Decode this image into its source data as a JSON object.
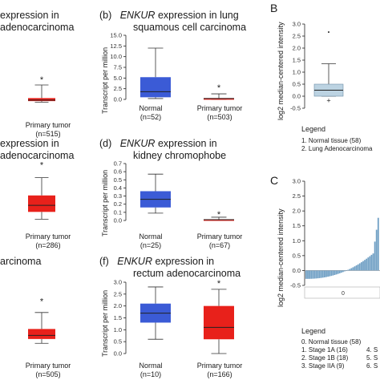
{
  "chart_data": [
    {
      "id": "a",
      "type": "box",
      "title_lines": [
        "expression in",
        "adenocarcinoma"
      ],
      "categories": [
        {
          "label": "Primary tumor",
          "n": "(n=515)"
        }
      ],
      "ylim": [
        0,
        14
      ],
      "boxes": [
        {
          "color": "#e8211b",
          "whislo": 0.1,
          "q1": 0.3,
          "med": 0.5,
          "q3": 0.9,
          "whishi": 3.5,
          "outlier": 4.8
        }
      ]
    },
    {
      "id": "b",
      "type": "box",
      "letter": "(b)",
      "gene": "ENKUR",
      "title_lines": [
        " expression in lung",
        "squamous cell carcinoma"
      ],
      "ylabel": "Transcript per million",
      "yticks": [
        "0.0",
        "2.5",
        "5.0",
        "7.5",
        "10.0",
        "12.5",
        "15.0"
      ],
      "ylim": [
        0,
        15
      ],
      "categories": [
        {
          "label": "Normal",
          "n": "(n=52)"
        },
        {
          "label": "Primary tumor",
          "n": "(n=503)"
        }
      ],
      "boxes": [
        {
          "color": "#3b5bd6",
          "whislo": 0.2,
          "q1": 0.5,
          "med": 1.8,
          "q3": 5.2,
          "whishi": 12.0
        },
        {
          "color": "#e8211b",
          "whislo": 0.0,
          "q1": 0.1,
          "med": 0.2,
          "q3": 0.3,
          "whishi": 1.3,
          "outlier": 3.0
        }
      ]
    },
    {
      "id": "c",
      "type": "box",
      "title_lines": [
        "expression in",
        "adenocarcinoma"
      ],
      "categories": [
        {
          "label": "Primary tumor",
          "n": "(n=286)"
        }
      ],
      "ylim": [
        0,
        14
      ],
      "boxes": [
        {
          "color": "#e8211b",
          "whislo": 0.2,
          "q1": 1.3,
          "med": 2.3,
          "q3": 3.8,
          "whishi": 6.5,
          "outlier": 8.6
        }
      ]
    },
    {
      "id": "d",
      "type": "box",
      "letter": "(d)",
      "gene": "ENKUR",
      "title_lines": [
        " expression in",
        "kidney chromophobe"
      ],
      "ylabel": "Transcript per million",
      "yticks": [
        "0.0",
        "0.1",
        "0.2",
        "0.3",
        "0.4",
        "0.5",
        "0.6",
        "0.7"
      ],
      "ylim": [
        0,
        0.7
      ],
      "categories": [
        {
          "label": "Normal",
          "n": "(n=25)"
        },
        {
          "label": "Primary tumor",
          "n": "(n=67)"
        }
      ],
      "boxes": [
        {
          "color": "#3b5bd6",
          "whislo": 0.09,
          "q1": 0.16,
          "med": 0.26,
          "q3": 0.36,
          "whishi": 0.57
        },
        {
          "color": "#e8211b",
          "whislo": 0.0,
          "q1": 0.005,
          "med": 0.01,
          "q3": 0.015,
          "whishi": 0.04,
          "outlier": 0.09
        }
      ]
    },
    {
      "id": "e",
      "type": "box",
      "title_lines": [
        "",
        "arcinoma"
      ],
      "categories": [
        {
          "label": "Primary tumor",
          "n": "(n=505)"
        }
      ],
      "ylim": [
        0,
        14
      ],
      "boxes": [
        {
          "color": "#e8211b",
          "whislo": 0.2,
          "q1": 0.8,
          "med": 1.3,
          "q3": 2.2,
          "whishi": 4.5,
          "outlier": 6.2
        }
      ]
    },
    {
      "id": "f",
      "type": "box",
      "letter": "(f)",
      "gene": "ENKUR",
      "title_lines": [
        " expression in",
        "rectum adenocarcinoma"
      ],
      "ylabel": "Transcript per million",
      "yticks": [
        "0.0",
        "0.5",
        "1.0",
        "1.5",
        "2.0",
        "2.5",
        "3.0"
      ],
      "ylim": [
        0,
        3
      ],
      "categories": [
        {
          "label": "Normal",
          "n": "(n=10)"
        },
        {
          "label": "Primary tumor",
          "n": "(n=166)"
        }
      ],
      "boxes": [
        {
          "color": "#3b5bd6",
          "whislo": 0.6,
          "q1": 1.3,
          "med": 1.7,
          "q3": 2.1,
          "whishi": 2.8
        },
        {
          "color": "#e8211b",
          "whislo": 0.0,
          "q1": 0.6,
          "med": 1.1,
          "q3": 2.0,
          "whishi": 2.7,
          "outlier": 3.0
        }
      ]
    },
    {
      "id": "B",
      "type": "box",
      "letter": "B",
      "ylabel": "log2 median-centered intensity",
      "yticks": [
        "-0.5",
        "0.0",
        "0.5",
        "1.0",
        "1.5",
        "2.0",
        "2.5",
        "3.0"
      ],
      "ylim": [
        -0.5,
        3.0
      ],
      "boxes": [
        {
          "color": "#bcd3e2",
          "whislo": 0.0,
          "q1": 0.0,
          "med": 0.25,
          "q3": 0.5,
          "whishi": 1.35,
          "outlier": 2.75,
          "lowpoint": -0.15
        }
      ],
      "legend_title": "Legend",
      "legend_items": [
        "1. Normal tissue (58)",
        "2. Lung Adenocarcinoma"
      ]
    },
    {
      "id": "C",
      "type": "bar",
      "letter": "C",
      "ylabel": "log2 median-centered intensity",
      "yticks": [
        "-0.5",
        "0.0",
        "0.5",
        "1.0",
        "1.5",
        "2.0",
        "2.5",
        "3.0"
      ],
      "ylim": [
        -0.5,
        3.0
      ],
      "bar_color": "#6f9fc4",
      "sample_marker": "0",
      "legend_title": "Legend",
      "legend_items": [
        "0. Normal tissue (58)",
        "1. Stage 1A (16)",
        "2. Stage 1B (18)",
        "3. Stage IIA (9)"
      ],
      "legend_items_right": [
        "4. S",
        "5. S",
        "6. S"
      ]
    }
  ]
}
